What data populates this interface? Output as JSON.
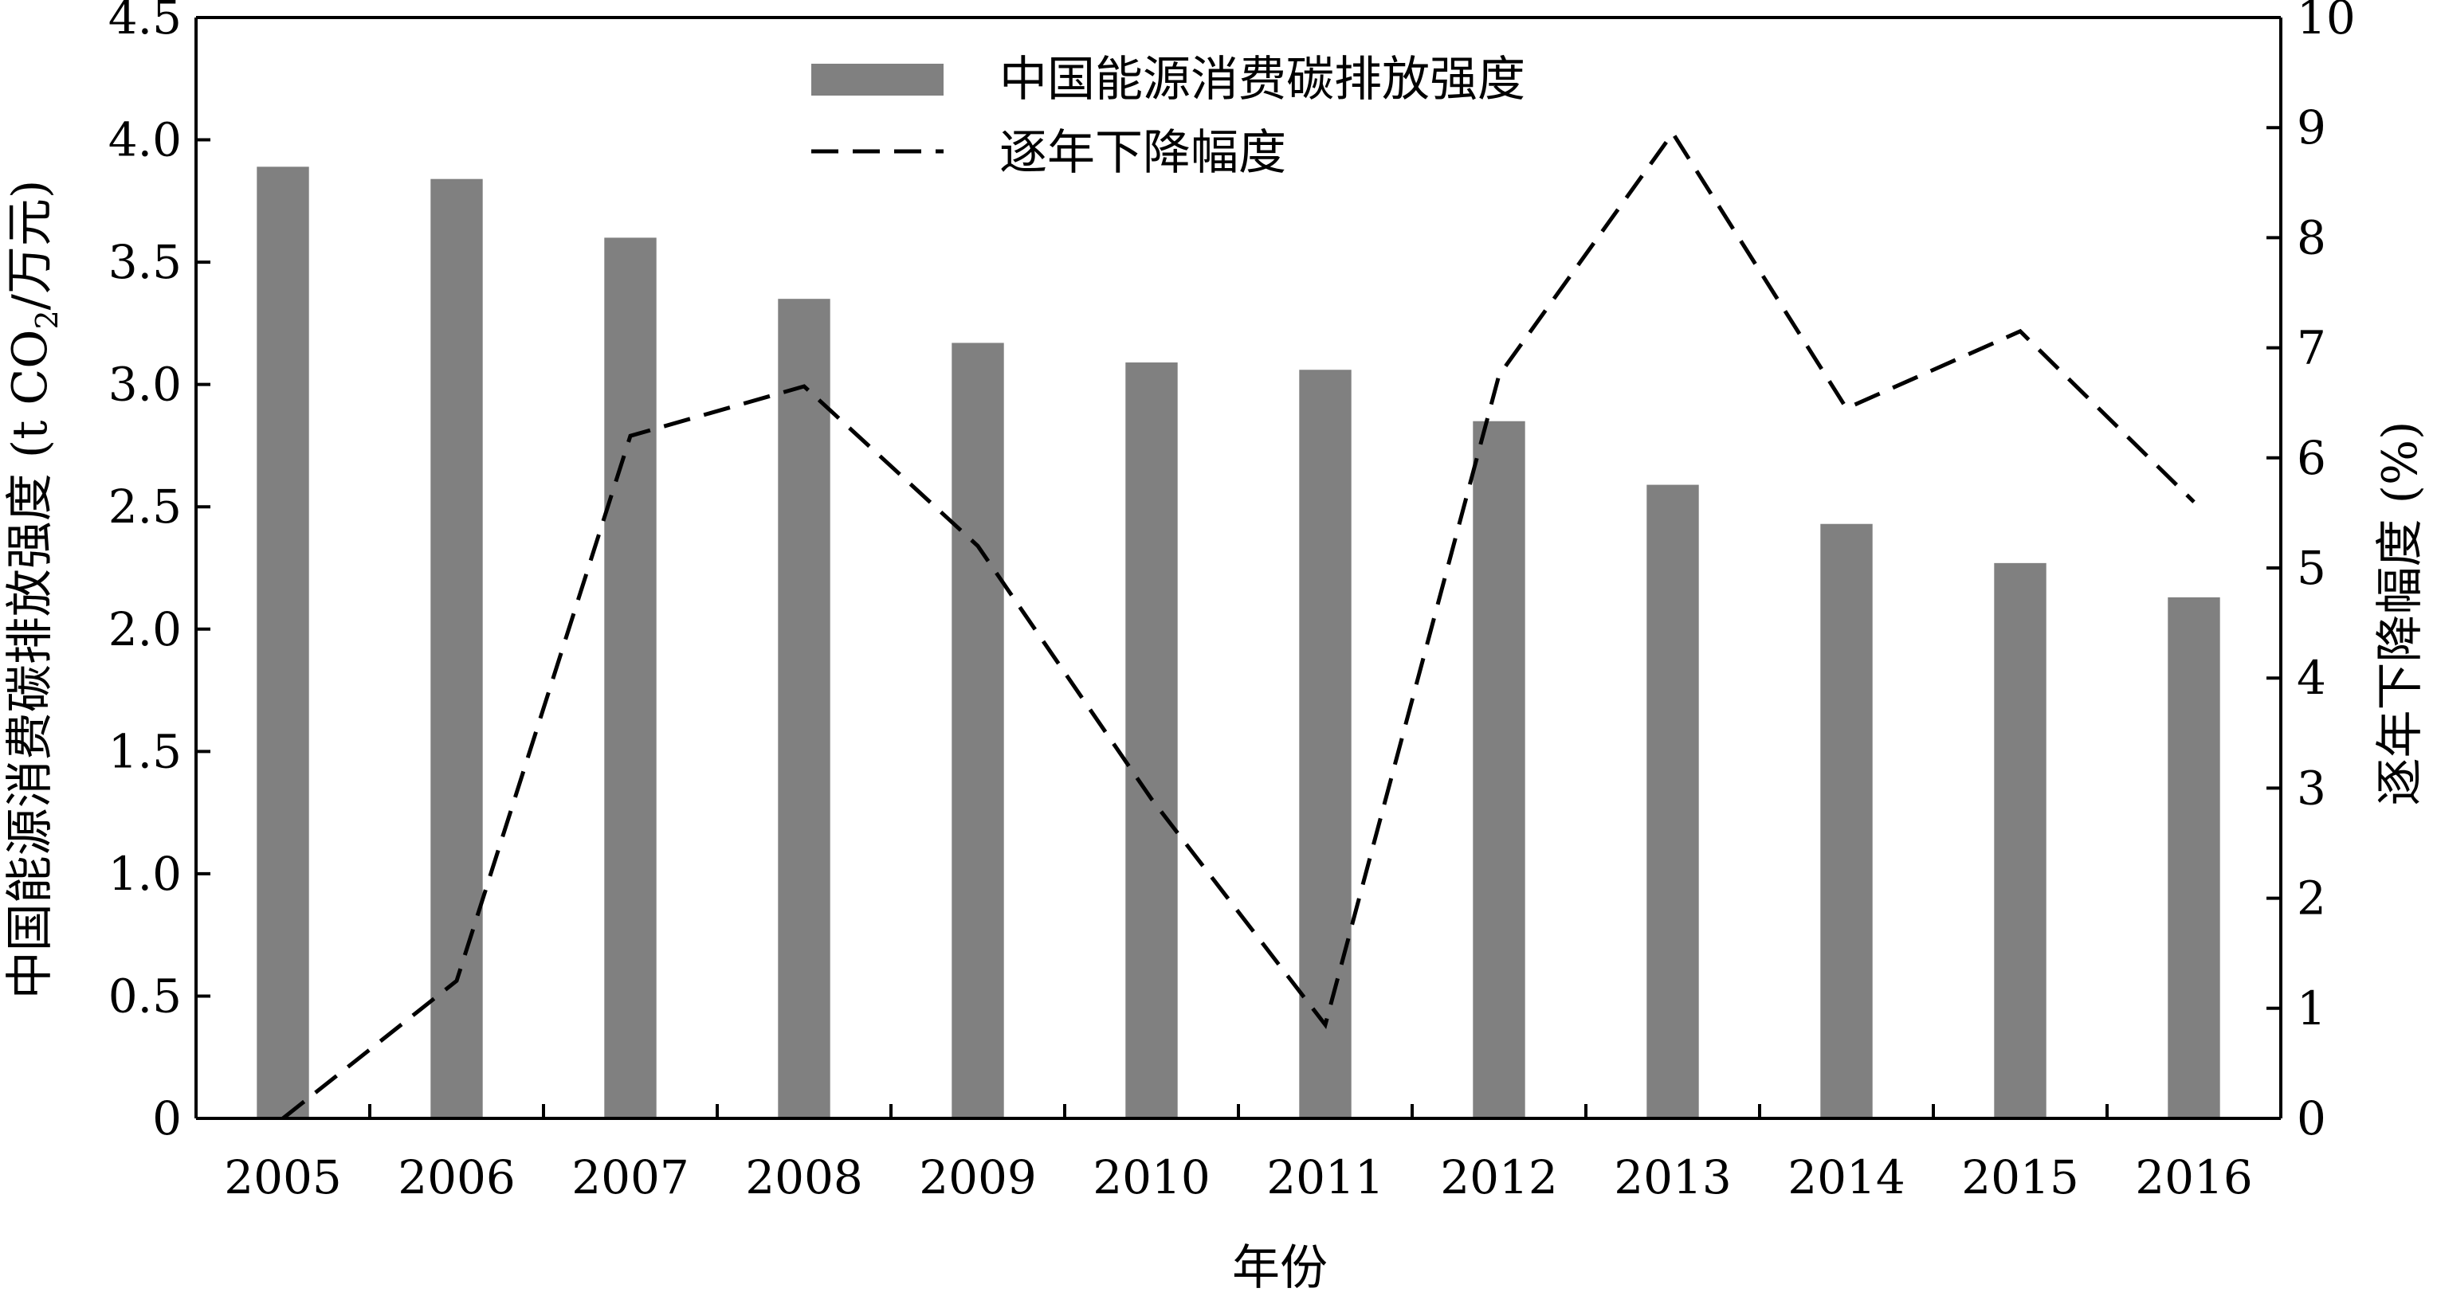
{
  "chart_data": {
    "type": "bar",
    "title": "",
    "xlabel": "年份",
    "ylabel_left_main": "中国能源消费碳排放强度 (t CO",
    "ylabel_left_sub": "2",
    "ylabel_left_tail": "/万元)",
    "ylabel_right": "逐年下降幅度 (%)",
    "categories": [
      "2005",
      "2006",
      "2007",
      "2008",
      "2009",
      "2010",
      "2011",
      "2012",
      "2013",
      "2014",
      "2015",
      "2016"
    ],
    "series": [
      {
        "name": "中国能源消费碳排放强度",
        "type": "bar",
        "axis": "left",
        "color": "#808080",
        "values": [
          3.89,
          3.84,
          3.6,
          3.35,
          3.17,
          3.09,
          3.06,
          2.85,
          2.59,
          2.43,
          2.27,
          2.13
        ]
      },
      {
        "name": "逐年下降幅度",
        "type": "line",
        "style": "dashed",
        "axis": "right",
        "color": "#000000",
        "values": [
          0,
          1.25,
          6.2,
          6.65,
          5.2,
          2.9,
          0.85,
          6.75,
          8.95,
          6.45,
          7.15,
          5.6
        ]
      }
    ],
    "ylim_left": [
      0,
      4.5
    ],
    "yticks_left": [
      "0",
      "0.5",
      "1.0",
      "1.5",
      "2.0",
      "2.5",
      "3.0",
      "3.5",
      "4.0",
      "4.5"
    ],
    "ylim_right": [
      0,
      10
    ],
    "yticks_right": [
      "0",
      "1",
      "2",
      "3",
      "4",
      "5",
      "6",
      "7",
      "8",
      "9",
      "10"
    ],
    "legend_position": "top-center",
    "grid": false
  }
}
